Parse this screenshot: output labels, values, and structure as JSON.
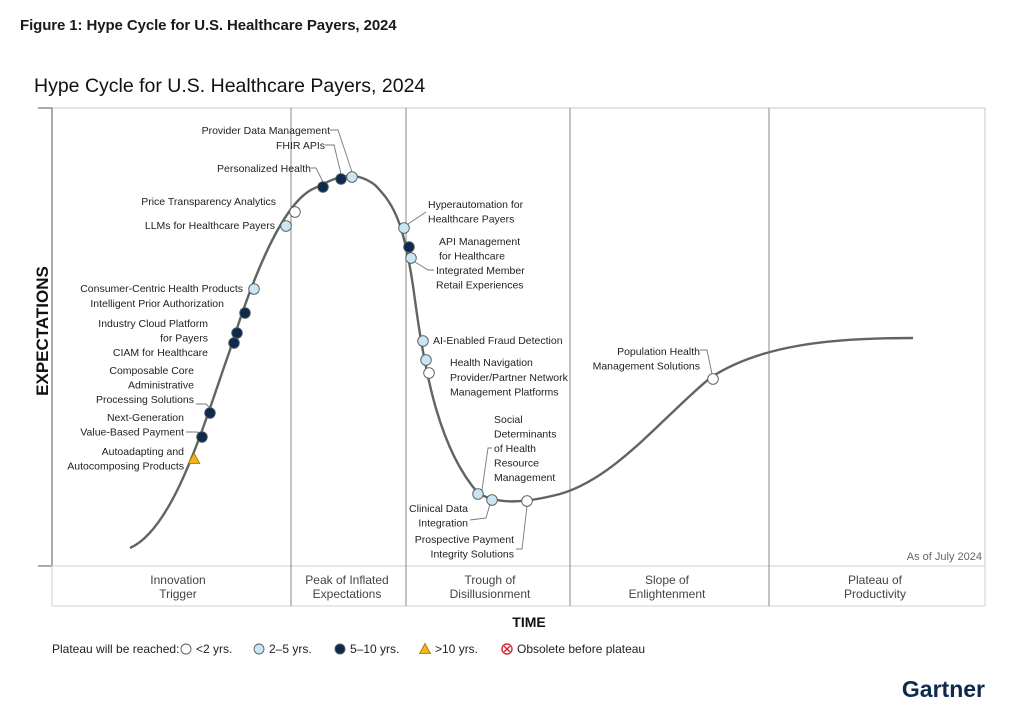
{
  "figure_caption": "Figure 1: Hype Cycle for U.S. Healthcare Payers, 2024",
  "brand": "Gartner",
  "colors": {
    "lt2": "#ffffff",
    "2to5": "#c9e6f5",
    "5to10": "#0b2a4e",
    "gt10": "#f2b51c",
    "obsolete": "#d7262e",
    "curve": "#5e6660",
    "divider": "#8a8a8a"
  },
  "chart_data": {
    "type": "hype-cycle",
    "title": "Hype Cycle for U.S. Healthcare Payers, 2024",
    "xlabel": "TIME",
    "ylabel": "EXPECTATIONS",
    "as_of": "As of July 2024",
    "phases": [
      {
        "lines": [
          "Innovation",
          "Trigger"
        ]
      },
      {
        "lines": [
          "Peak of Inflated",
          "Expectations"
        ]
      },
      {
        "lines": [
          "Trough of",
          "Disillusionment"
        ]
      },
      {
        "lines": [
          "Slope of",
          "Enlightenment"
        ]
      },
      {
        "lines": [
          "Plateau of",
          "Productivity"
        ]
      }
    ],
    "legend": {
      "title": "Plateau will be reached:",
      "items": [
        {
          "key": "lt2",
          "label": "<2 yrs.",
          "shape": "circle"
        },
        {
          "key": "2to5",
          "label": "2–5 yrs.",
          "shape": "circle"
        },
        {
          "key": "5to10",
          "label": "5–10 yrs.",
          "shape": "circle"
        },
        {
          "key": "gt10",
          "label": ">10 yrs.",
          "shape": "triangle"
        },
        {
          "key": "obsolete",
          "label": "Obsolete before plateau",
          "shape": "cross"
        }
      ]
    },
    "technologies": [
      {
        "lines": [
          "Provider Data Management"
        ],
        "cat": "2to5"
      },
      {
        "lines": [
          "FHIR APIs"
        ],
        "cat": "5to10"
      },
      {
        "lines": [
          "Personalized Health"
        ],
        "cat": "5to10"
      },
      {
        "lines": [
          "Price Transparency Analytics"
        ],
        "cat": "lt2"
      },
      {
        "lines": [
          "LLMs for Healthcare Payers"
        ],
        "cat": "2to5"
      },
      {
        "lines": [
          "Consumer-Centric Health Products"
        ],
        "cat": "2to5"
      },
      {
        "lines": [
          "Intelligent Prior Authorization"
        ],
        "cat": "5to10"
      },
      {
        "lines": [
          "Industry Cloud Platform",
          "for Payers"
        ],
        "cat": "5to10"
      },
      {
        "lines": [
          "CIAM for Healthcare"
        ],
        "cat": "5to10"
      },
      {
        "lines": [
          "Composable Core",
          "Administrative",
          "Processing Solutions"
        ],
        "cat": "5to10"
      },
      {
        "lines": [
          "Next-Generation",
          "Value-Based Payment"
        ],
        "cat": "5to10"
      },
      {
        "lines": [
          "Autoadapting and",
          "Autocomposing Products"
        ],
        "cat": "gt10"
      },
      {
        "lines": [
          "Hyperautomation for",
          "Healthcare Payers"
        ],
        "cat": "2to5"
      },
      {
        "lines": [
          "API Management",
          "for Healthcare"
        ],
        "cat": "5to10"
      },
      {
        "lines": [
          "Integrated Member",
          "Retail Experiences"
        ],
        "cat": "2to5"
      },
      {
        "lines": [
          "AI-Enabled Fraud Detection"
        ],
        "cat": "2to5"
      },
      {
        "lines": [
          "Health Navigation"
        ],
        "cat": "2to5"
      },
      {
        "lines": [
          "Provider/Partner Network",
          "Management Platforms"
        ],
        "cat": "lt2"
      },
      {
        "lines": [
          "Social",
          "Determinants",
          "of Health",
          "Resource",
          "Management"
        ],
        "cat": "2to5"
      },
      {
        "lines": [
          "Clinical Data",
          "Integration"
        ],
        "cat": "2to5"
      },
      {
        "lines": [
          "Prospective Payment",
          "Integrity Solutions"
        ],
        "cat": "lt2"
      },
      {
        "lines": [
          "Population Health",
          "Management Solutions"
        ],
        "cat": "lt2"
      }
    ]
  }
}
